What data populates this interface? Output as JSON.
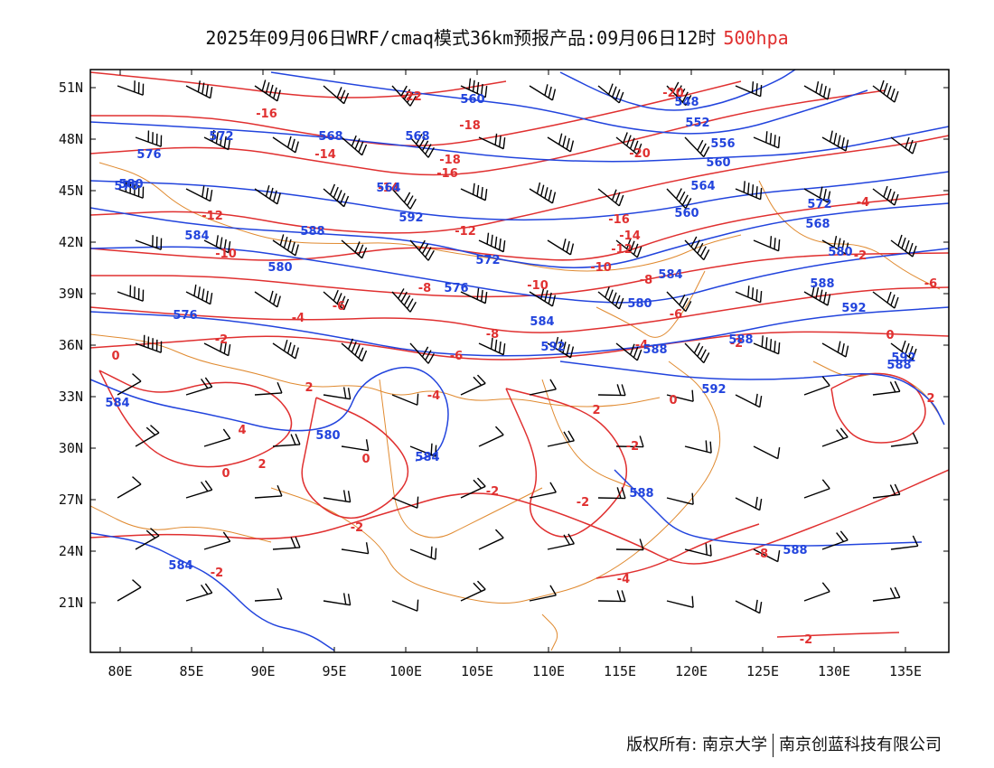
{
  "header": {
    "title": "2025年09月06日WRF/cmaq模式36km预报产品:09月06日12时",
    "level": "500hpa"
  },
  "colors": {
    "height_contour": "#2244dd",
    "temperature_contour": "#e03030",
    "boundary": "#e08a30",
    "wind_barb": "#000000"
  },
  "axes": {
    "lat_ticks": [
      "51N",
      "48N",
      "45N",
      "42N",
      "39N",
      "36N",
      "33N",
      "30N",
      "27N",
      "24N",
      "21N"
    ],
    "lon_ticks": [
      "80E",
      "85E",
      "90E",
      "95E",
      "100E",
      "105E",
      "110E",
      "115E",
      "120E",
      "125E",
      "130E",
      "135E"
    ]
  },
  "labels": {
    "height": [
      "560",
      "548",
      "552",
      "556",
      "560",
      "564",
      "568",
      "572",
      "576",
      "580",
      "584",
      "588",
      "592",
      "572",
      "576",
      "580",
      "584",
      "588",
      "592",
      "576",
      "584",
      "580",
      "584",
      "588",
      "592",
      "588",
      "584",
      "588",
      "592",
      "588",
      "580",
      "568",
      "560",
      "564",
      "568",
      "572",
      "576",
      "580",
      "584",
      "588",
      "592"
    ],
    "temperature": [
      "-22",
      "-20",
      "-18",
      "-16",
      "-14",
      "-12",
      "-10",
      "-8",
      "-6",
      "-4",
      "-2",
      "0",
      "2",
      "4",
      "-18",
      "-20",
      "-16",
      "-14",
      "-12",
      "-10",
      "-8",
      "-6",
      "-4",
      "-2",
      "0",
      "2",
      "-16",
      "-14",
      "-12",
      "-10",
      "-8",
      "-6",
      "-4",
      "-2",
      "0",
      "2",
      "-8",
      "-6",
      "-4",
      "-2",
      "-2",
      "-2",
      "-2",
      "-4",
      "-2",
      "-2",
      "0",
      "2",
      "0"
    ]
  },
  "footer": {
    "copyright": "版权所有: 南京大学",
    "company": "南京创蓝科技有限公司"
  }
}
